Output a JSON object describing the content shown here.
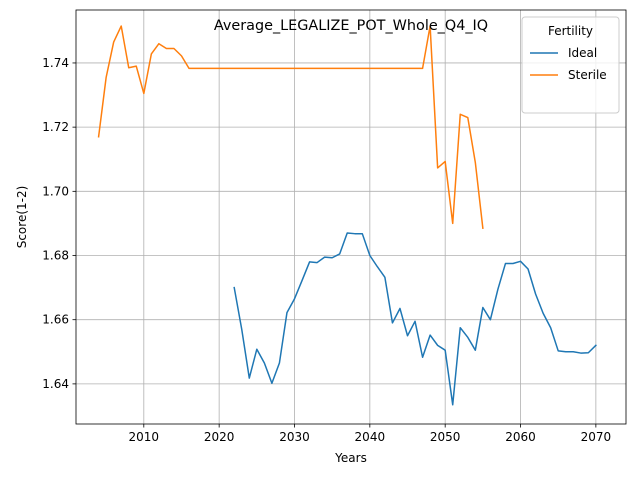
{
  "chart_data": {
    "type": "line",
    "title": "Average_LEGALIZE_POT_Whole_Q4_IQ",
    "xlabel": "Years",
    "ylabel": "Score(1-2)",
    "xlim": [
      2001,
      2074
    ],
    "ylim": [
      1.6275,
      1.7565
    ],
    "x_ticks": [
      2010,
      2020,
      2030,
      2040,
      2050,
      2060,
      2070
    ],
    "y_ticks": [
      1.64,
      1.66,
      1.68,
      1.7,
      1.72,
      1.74
    ],
    "x_tick_labels": [
      "2010",
      "2020",
      "2030",
      "2040",
      "2050",
      "2060",
      "2070"
    ],
    "y_tick_labels": [
      "1.64",
      "1.66",
      "1.68",
      "1.70",
      "1.72",
      "1.74"
    ],
    "grid": true,
    "legend": {
      "title": "Fertility",
      "placement": "top-right"
    },
    "series": [
      {
        "name": "Ideal",
        "color": "#1f77b4",
        "x": [
          2022,
          2023,
          2024,
          2025,
          2026,
          2027,
          2028,
          2029,
          2030,
          2031,
          2032,
          2033,
          2034,
          2035,
          2036,
          2037,
          2038,
          2039,
          2040,
          2041,
          2042,
          2043,
          2044,
          2045,
          2046,
          2047,
          2048,
          2049,
          2050,
          2051,
          2052,
          2053,
          2054,
          2055,
          2056,
          2057,
          2058,
          2059,
          2060,
          2061,
          2062,
          2063,
          2064,
          2065,
          2066,
          2067,
          2068,
          2069,
          2070
        ],
        "y": [
          1.67,
          1.657,
          1.6418,
          1.6508,
          1.6465,
          1.6402,
          1.6465,
          1.6622,
          1.6665,
          1.6722,
          1.678,
          1.6778,
          1.6795,
          1.6793,
          1.6805,
          1.687,
          1.6868,
          1.6868,
          1.68,
          1.6765,
          1.6732,
          1.659,
          1.6635,
          1.655,
          1.6595,
          1.6483,
          1.6552,
          1.652,
          1.6505,
          1.6335,
          1.6575,
          1.6545,
          1.6505,
          1.6638,
          1.66,
          1.6695,
          1.6775,
          1.6775,
          1.6782,
          1.6758,
          1.668,
          1.662,
          1.6575,
          1.6503,
          1.65,
          1.65,
          1.6496,
          1.6497,
          1.652
        ]
      },
      {
        "name": "Sterile",
        "color": "#ff7f0e",
        "x": [
          2004,
          2005,
          2006,
          2007,
          2008,
          2009,
          2010,
          2011,
          2012,
          2013,
          2014,
          2015,
          2016,
          2017,
          2018,
          2019,
          2020,
          2021,
          2022,
          2023,
          2024,
          2025,
          2026,
          2027,
          2028,
          2029,
          2030,
          2031,
          2032,
          2033,
          2034,
          2035,
          2036,
          2037,
          2038,
          2039,
          2040,
          2041,
          2042,
          2043,
          2044,
          2045,
          2046,
          2047,
          2048,
          2049,
          2050,
          2051,
          2052,
          2053,
          2054,
          2055
        ],
        "y": [
          1.717,
          1.7355,
          1.7465,
          1.7515,
          1.7385,
          1.739,
          1.7305,
          1.7428,
          1.746,
          1.7445,
          1.7445,
          1.7422,
          1.7383,
          1.7383,
          1.7383,
          1.7383,
          1.7383,
          1.7383,
          1.7383,
          1.7383,
          1.7383,
          1.7383,
          1.7383,
          1.7383,
          1.7383,
          1.7383,
          1.7383,
          1.7383,
          1.7383,
          1.7383,
          1.7383,
          1.7383,
          1.7383,
          1.7383,
          1.7383,
          1.7383,
          1.7383,
          1.7383,
          1.7383,
          1.7383,
          1.7383,
          1.7383,
          1.7383,
          1.7383,
          1.7515,
          1.7073,
          1.7093,
          1.69,
          1.724,
          1.723,
          1.709,
          1.6885
        ]
      }
    ]
  }
}
